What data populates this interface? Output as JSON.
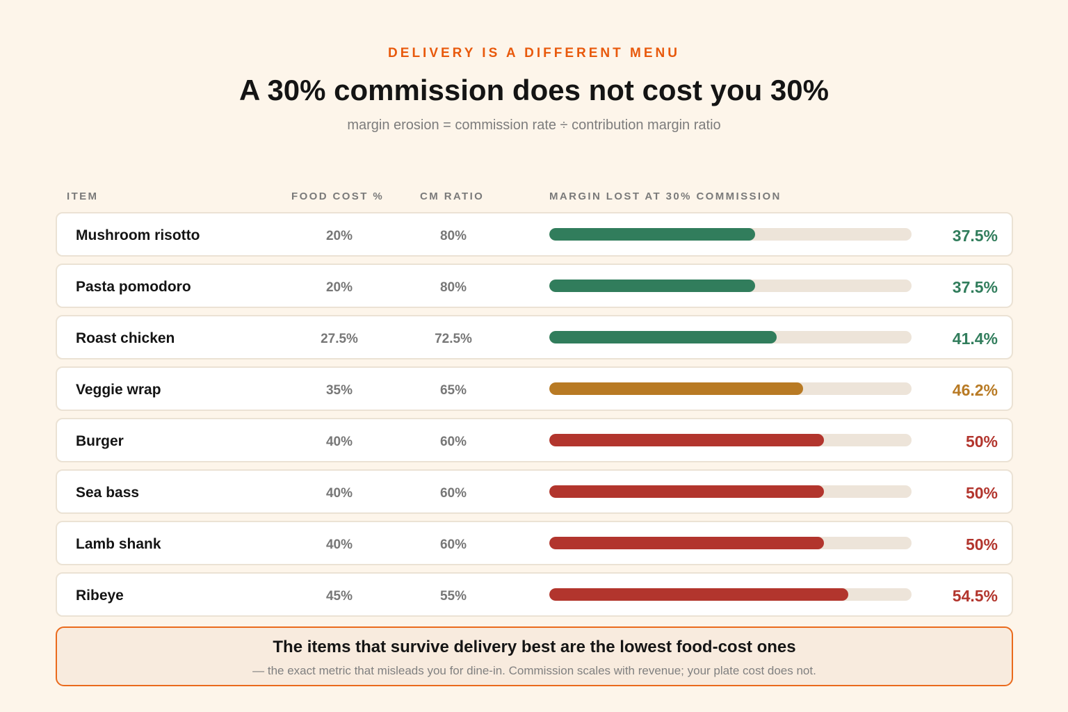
{
  "header": {
    "kicker": "DELIVERY IS A DIFFERENT MENU",
    "title": "A 30% commission does not cost you 30%",
    "subtitle": "margin erosion = commission rate ÷ contribution margin ratio"
  },
  "columns": {
    "item": "ITEM",
    "food_cost": "FOOD COST %",
    "cm_ratio": "CM RATIO",
    "margin_lost": "MARGIN LOST AT 30% COMMISSION"
  },
  "colors": {
    "good": "#317d5c",
    "mid": "#b87a24",
    "bad": "#b2352d",
    "track": "#ede4d9",
    "accent": "#e8590c"
  },
  "chart_data": {
    "type": "bar",
    "orientation": "horizontal",
    "xlim": [
      0,
      66
    ],
    "categories": [
      "Mushroom risotto",
      "Pasta pomodoro",
      "Roast chicken",
      "Veggie wrap",
      "Burger",
      "Sea bass",
      "Lamb shank",
      "Ribeye"
    ],
    "values": [
      37.5,
      37.5,
      41.4,
      46.2,
      50,
      50,
      50,
      54.5
    ],
    "rows": [
      {
        "item": "Mushroom risotto",
        "food_cost": "20%",
        "cm_ratio": "80%",
        "margin_lost": 37.5,
        "label": "37.5%",
        "level": "good"
      },
      {
        "item": "Pasta pomodoro",
        "food_cost": "20%",
        "cm_ratio": "80%",
        "margin_lost": 37.5,
        "label": "37.5%",
        "level": "good"
      },
      {
        "item": "Roast chicken",
        "food_cost": "27.5%",
        "cm_ratio": "72.5%",
        "margin_lost": 41.4,
        "label": "41.4%",
        "level": "good"
      },
      {
        "item": "Veggie wrap",
        "food_cost": "35%",
        "cm_ratio": "65%",
        "margin_lost": 46.2,
        "label": "46.2%",
        "level": "mid"
      },
      {
        "item": "Burger",
        "food_cost": "40%",
        "cm_ratio": "60%",
        "margin_lost": 50,
        "label": "50%",
        "level": "bad"
      },
      {
        "item": "Sea bass",
        "food_cost": "40%",
        "cm_ratio": "60%",
        "margin_lost": 50,
        "label": "50%",
        "level": "bad"
      },
      {
        "item": "Lamb shank",
        "food_cost": "40%",
        "cm_ratio": "60%",
        "margin_lost": 50,
        "label": "50%",
        "level": "bad"
      },
      {
        "item": "Ribeye",
        "food_cost": "45%",
        "cm_ratio": "55%",
        "margin_lost": 54.5,
        "label": "54.5%",
        "level": "bad"
      }
    ]
  },
  "callout": {
    "title": "The items that survive delivery best are the lowest food-cost ones",
    "text": "— the exact metric that misleads you for dine-in. Commission scales with revenue; your plate cost does not."
  }
}
